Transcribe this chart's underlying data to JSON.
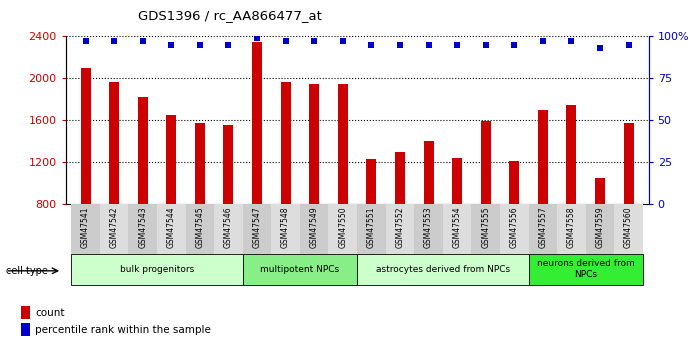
{
  "title": "GDS1396 / rc_AA866477_at",
  "samples": [
    "GSM47541",
    "GSM47542",
    "GSM47543",
    "GSM47544",
    "GSM47545",
    "GSM47546",
    "GSM47547",
    "GSM47548",
    "GSM47549",
    "GSM47550",
    "GSM47551",
    "GSM47552",
    "GSM47553",
    "GSM47554",
    "GSM47555",
    "GSM47556",
    "GSM47557",
    "GSM47558",
    "GSM47559",
    "GSM47560"
  ],
  "counts": [
    2100,
    1960,
    1820,
    1650,
    1570,
    1550,
    2340,
    1960,
    1940,
    1940,
    1230,
    1290,
    1400,
    1240,
    1590,
    1210,
    1690,
    1740,
    1040,
    1570
  ],
  "percentile_ranks": [
    97,
    97,
    97,
    95,
    95,
    95,
    99,
    97,
    97,
    97,
    95,
    95,
    95,
    95,
    95,
    95,
    97,
    97,
    93,
    95
  ],
  "ylim_left": [
    800,
    2400
  ],
  "ylim_right": [
    0,
    100
  ],
  "yticks_left": [
    800,
    1200,
    1600,
    2000,
    2400
  ],
  "yticks_right": [
    0,
    25,
    50,
    75,
    100
  ],
  "ytick_labels_right": [
    "0",
    "25",
    "50",
    "75",
    "100%"
  ],
  "bar_color": "#cc0000",
  "dot_color": "#0000cc",
  "cell_groups": [
    {
      "label": "bulk progenitors",
      "start": 0,
      "end": 6,
      "color": "#ccffcc"
    },
    {
      "label": "multipotent NPCs",
      "start": 6,
      "end": 10,
      "color": "#88ee88"
    },
    {
      "label": "astrocytes derived from NPCs",
      "start": 10,
      "end": 16,
      "color": "#ccffcc"
    },
    {
      "label": "neurons derived from\nNPCs",
      "start": 16,
      "end": 20,
      "color": "#33ee33"
    }
  ],
  "cell_type_label": "cell type",
  "legend_count_label": "count",
  "legend_percentile_label": "percentile rank within the sample",
  "tick_label_color_left": "#cc0000",
  "tick_label_color_right": "#0000cc",
  "tick_bg_odd": "#cccccc",
  "tick_bg_even": "#dddddd",
  "fig_width": 6.9,
  "fig_height": 3.45
}
